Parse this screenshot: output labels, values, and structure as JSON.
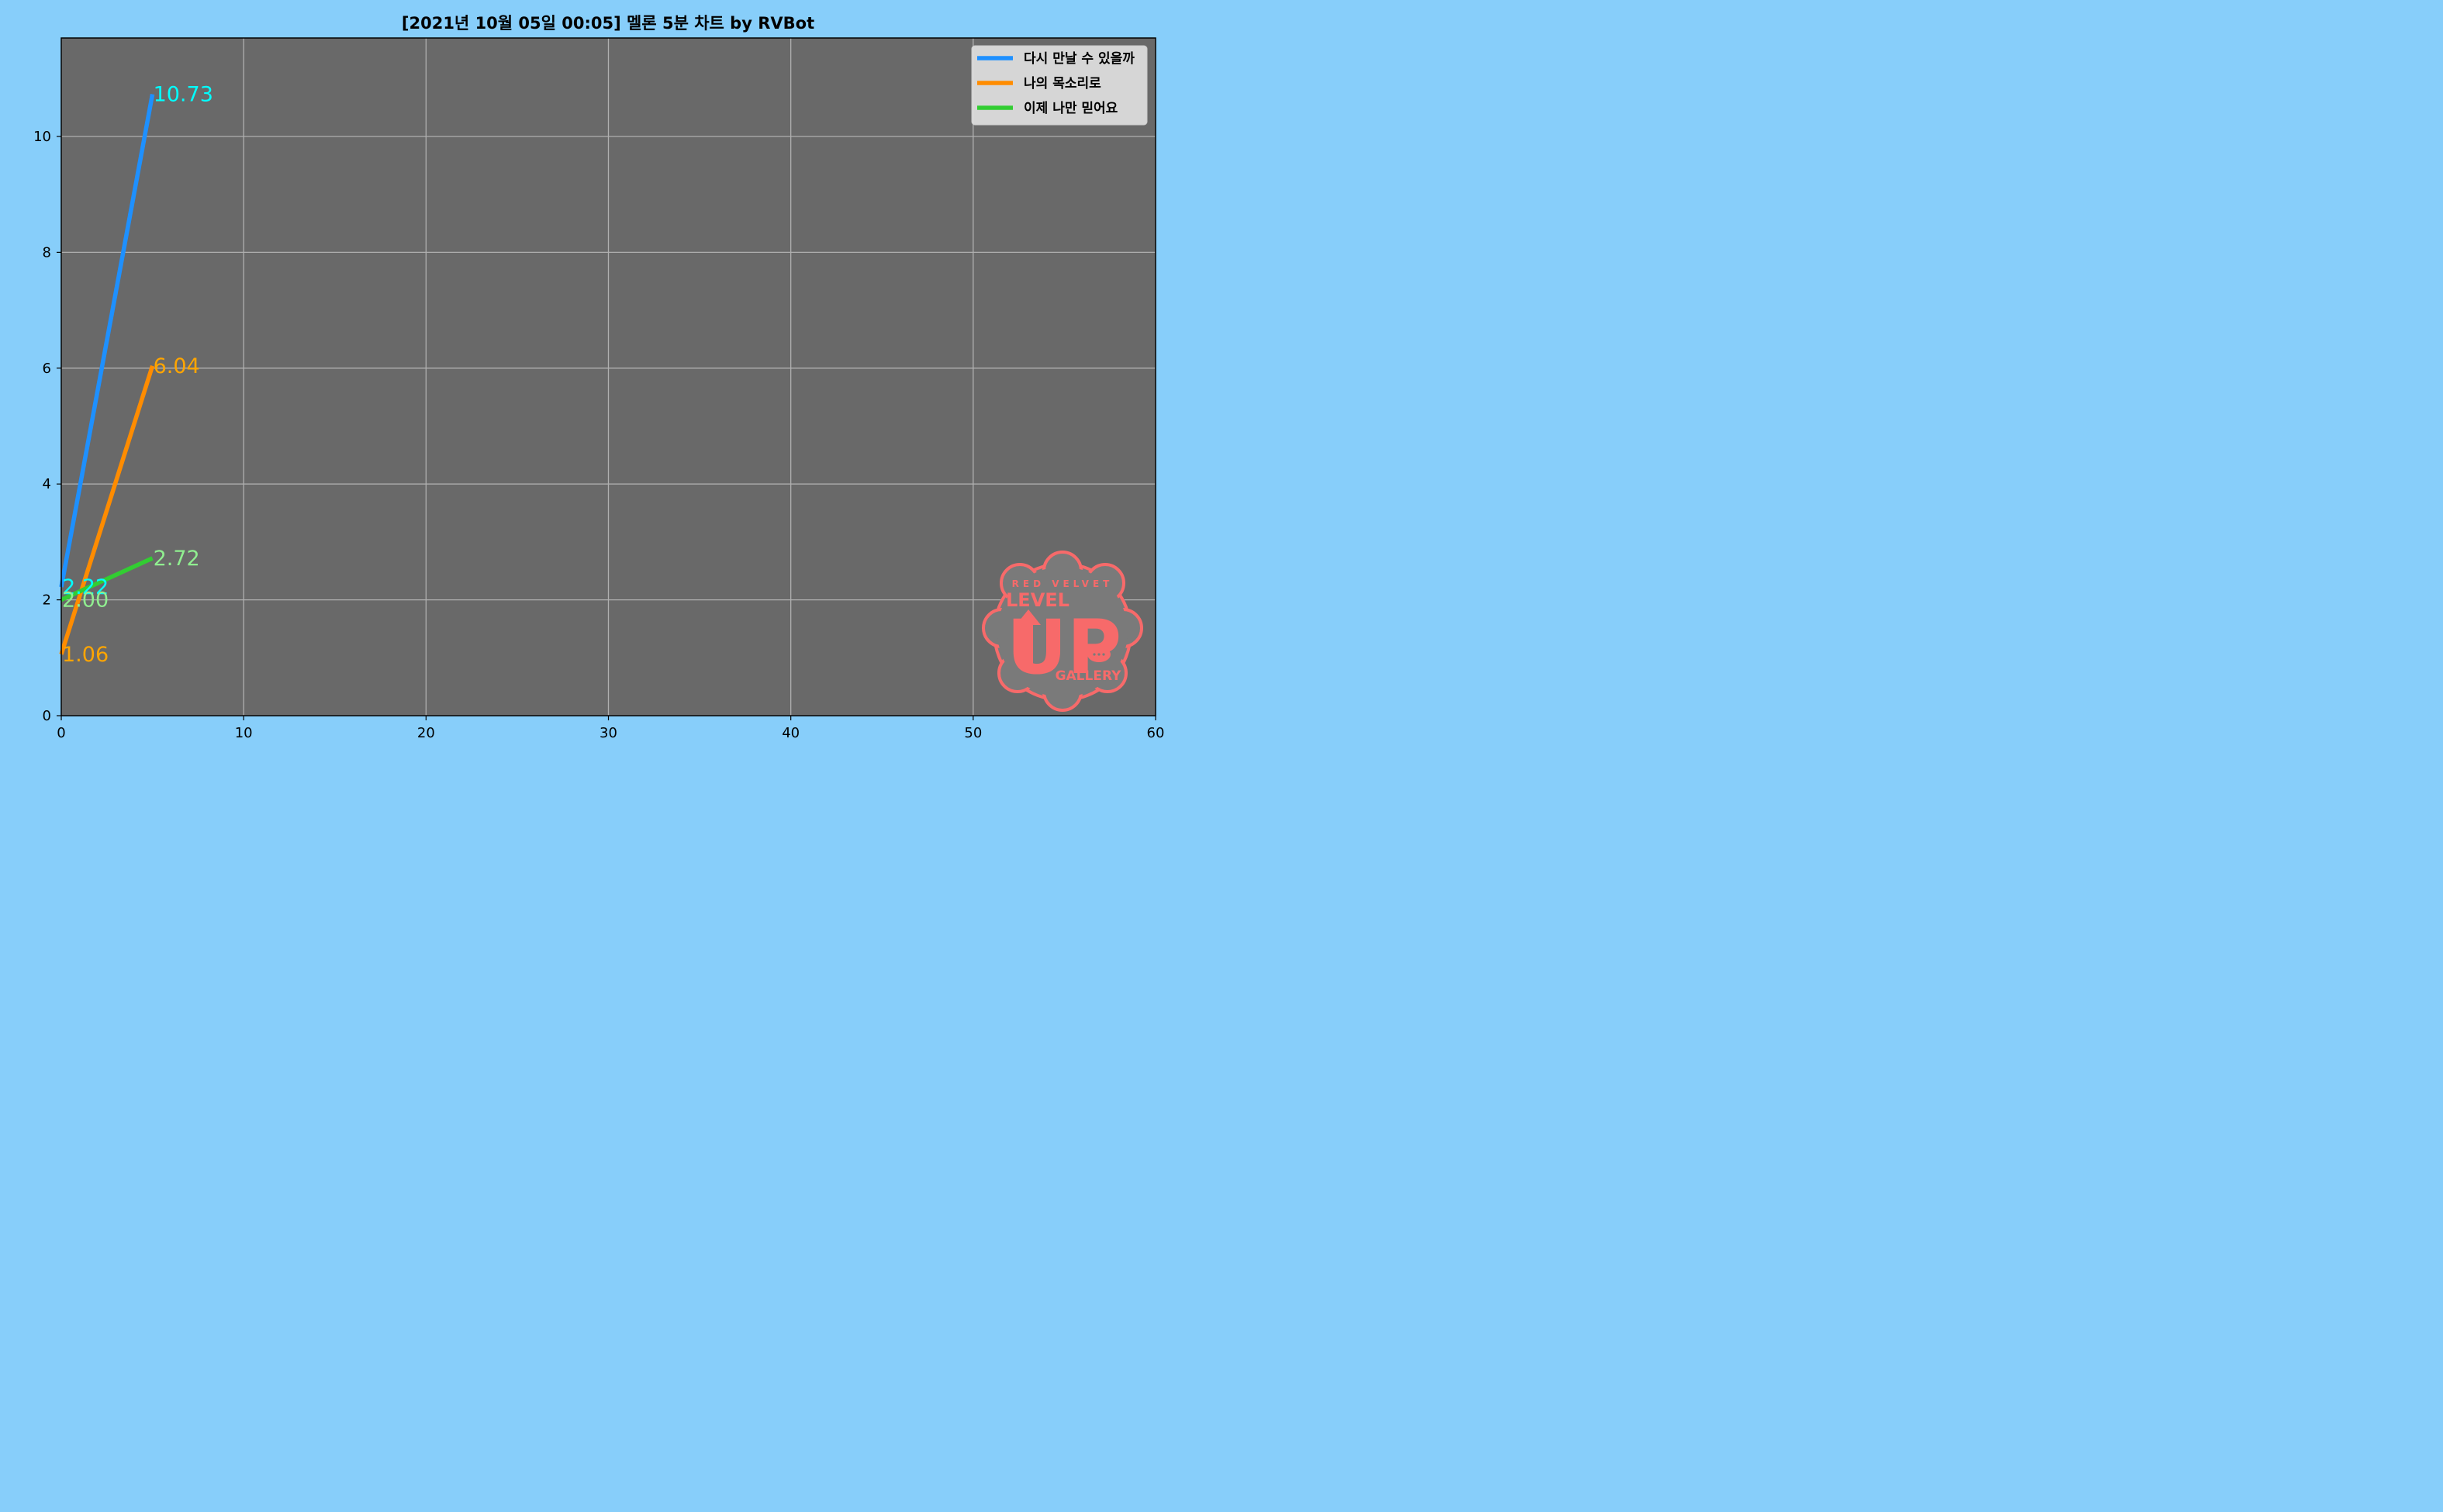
{
  "chart_data": {
    "type": "line",
    "title": "[2021년 10월 05일 00:05] 멜론 5분 차트 by RVBot",
    "xlabel": "",
    "ylabel": "",
    "xlim": [
      0,
      60
    ],
    "ylim": [
      0,
      11.7
    ],
    "x_ticks": [
      0,
      10,
      20,
      30,
      40,
      50,
      60
    ],
    "y_ticks": [
      0,
      2,
      4,
      6,
      8,
      10
    ],
    "grid": true,
    "legend_position": "top-right",
    "plot_background": "#696969",
    "figure_background": "#87cefa",
    "series": [
      {
        "name": "다시 만날 수 있을까",
        "color": "#1e90ff",
        "label_color": "#00ffff",
        "x": [
          0,
          5
        ],
        "y": [
          2.22,
          10.73
        ],
        "labels": [
          "2.22",
          "10.73"
        ]
      },
      {
        "name": "나의 목소리로",
        "color": "#ff8c00",
        "label_color": "#ffa500",
        "x": [
          0,
          5
        ],
        "y": [
          1.06,
          6.04
        ],
        "labels": [
          "1.06",
          "6.04"
        ]
      },
      {
        "name": "이제 나만 믿어요",
        "color": "#32cd32",
        "label_color": "#90ee90",
        "x": [
          0,
          5
        ],
        "y": [
          2.0,
          2.72
        ],
        "labels": [
          "2.00",
          "2.72"
        ]
      }
    ]
  },
  "watermark": {
    "brand_text": "RED VELVET",
    "line1": "LEVEL",
    "line2": "UP",
    "line3": "GALLERY",
    "color": "#f76a6a"
  }
}
